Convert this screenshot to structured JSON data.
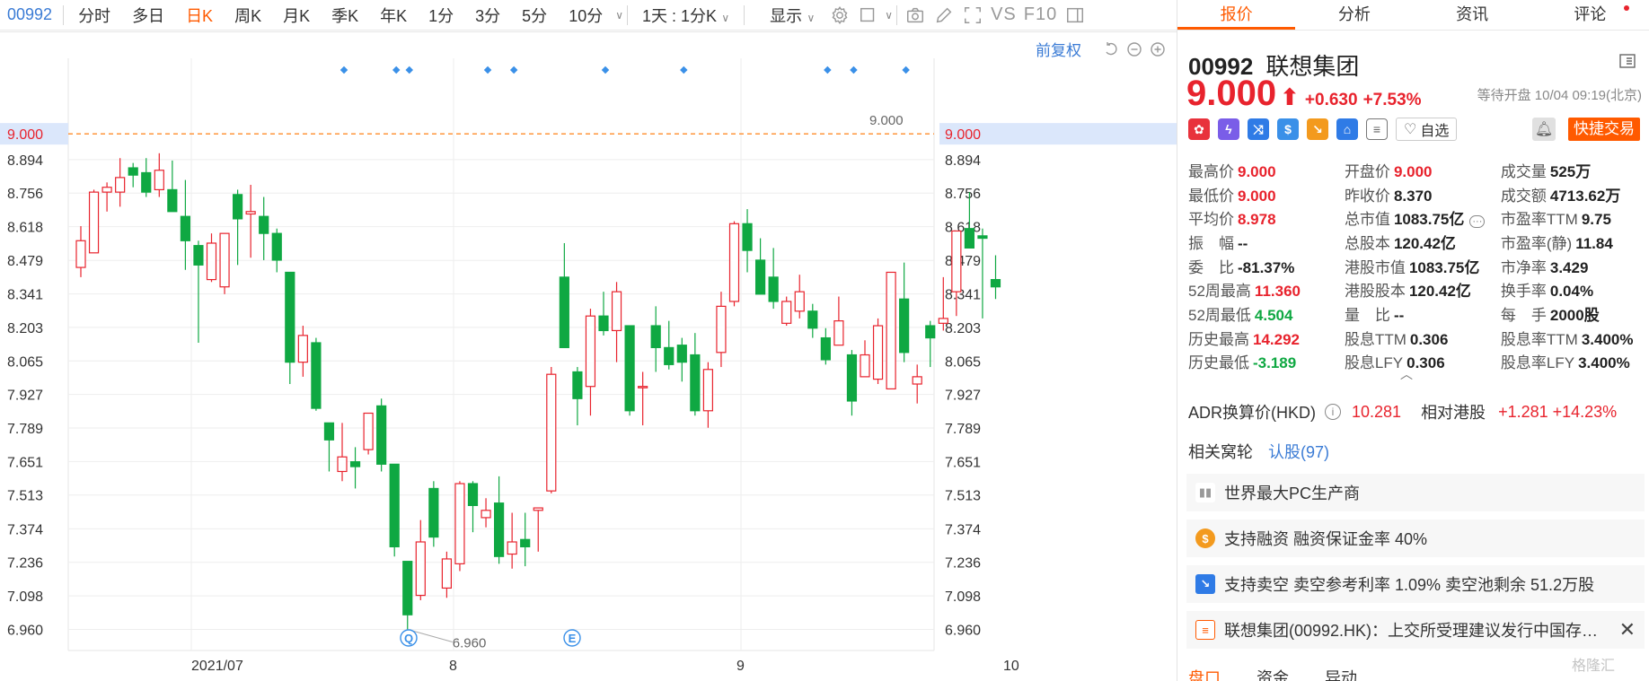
{
  "toolbar": {
    "code": "00992",
    "tabs": [
      "分时",
      "多日",
      "日K",
      "周K",
      "月K",
      "季K",
      "年K",
      "1分",
      "3分",
      "5分",
      "10分"
    ],
    "active_tab": "日K",
    "period_select": "1天 : 1分K",
    "display_label": "显示",
    "vs_label": "VS",
    "f10_label": "F10"
  },
  "chart": {
    "fq_label": "前复权",
    "current_price_label": "9.000",
    "min_label": "6.960",
    "event_markers": [
      "Q",
      "E"
    ],
    "colors": {
      "up": "#e8232d",
      "down": "#0fa842",
      "price_line": "#ff8c2a",
      "grid": "#eeeeee",
      "marker": "#3a90e8"
    }
  },
  "chart_data": {
    "type": "candlestick",
    "y_ticks": [
      "9.000",
      "8.894",
      "8.756",
      "8.618",
      "8.479",
      "8.341",
      "8.203",
      "8.065",
      "7.927",
      "7.789",
      "7.651",
      "7.513",
      "7.374",
      "7.236",
      "7.098",
      "6.960"
    ],
    "x_ticks": [
      "2021/07",
      "8",
      "9",
      "10"
    ],
    "ylim": [
      6.91,
      9.2
    ],
    "candles": [
      {
        "o": 8.45,
        "c": 8.56,
        "h": 8.62,
        "l": 8.41
      },
      {
        "o": 8.51,
        "c": 8.76,
        "h": 8.77,
        "l": 8.51
      },
      {
        "o": 8.76,
        "c": 8.78,
        "h": 8.8,
        "l": 8.68
      },
      {
        "o": 8.76,
        "c": 8.82,
        "h": 8.9,
        "l": 8.7
      },
      {
        "o": 8.86,
        "c": 8.83,
        "h": 8.88,
        "l": 8.78
      },
      {
        "o": 8.84,
        "c": 8.76,
        "h": 8.9,
        "l": 8.74
      },
      {
        "o": 8.77,
        "c": 8.85,
        "h": 8.92,
        "l": 8.74
      },
      {
        "o": 8.77,
        "c": 8.68,
        "h": 8.89,
        "l": 8.68
      },
      {
        "o": 8.66,
        "c": 8.56,
        "h": 8.81,
        "l": 8.44
      },
      {
        "o": 8.54,
        "c": 8.46,
        "h": 8.56,
        "l": 8.14
      },
      {
        "o": 8.4,
        "c": 8.55,
        "h": 8.59,
        "l": 8.39
      },
      {
        "o": 8.37,
        "c": 8.59,
        "h": 8.59,
        "l": 8.34
      },
      {
        "o": 8.75,
        "c": 8.65,
        "h": 8.77,
        "l": 8.46
      },
      {
        "o": 8.67,
        "c": 8.68,
        "h": 8.79,
        "l": 8.49
      },
      {
        "o": 8.66,
        "c": 8.59,
        "h": 8.74,
        "l": 8.48
      },
      {
        "o": 8.59,
        "c": 8.48,
        "h": 8.61,
        "l": 8.43
      },
      {
        "o": 8.43,
        "c": 8.06,
        "h": 8.43,
        "l": 7.97
      },
      {
        "o": 8.06,
        "c": 8.17,
        "h": 8.21,
        "l": 8.0
      },
      {
        "o": 8.14,
        "c": 7.87,
        "h": 8.16,
        "l": 7.86
      },
      {
        "o": 7.81,
        "c": 7.74,
        "h": 7.81,
        "l": 7.61
      },
      {
        "o": 7.61,
        "c": 7.67,
        "h": 7.81,
        "l": 7.57
      },
      {
        "o": 7.65,
        "c": 7.63,
        "h": 7.71,
        "l": 7.54
      },
      {
        "o": 7.7,
        "c": 7.85,
        "h": 7.85,
        "l": 7.68
      },
      {
        "o": 7.88,
        "c": 7.64,
        "h": 7.91,
        "l": 7.61
      },
      {
        "o": 7.64,
        "c": 7.3,
        "h": 7.64,
        "l": 7.26
      },
      {
        "o": 7.24,
        "c": 7.02,
        "h": 7.24,
        "l": 6.96
      },
      {
        "o": 7.1,
        "c": 7.32,
        "h": 7.41,
        "l": 7.08
      },
      {
        "o": 7.54,
        "c": 7.34,
        "h": 7.57,
        "l": 7.3
      },
      {
        "o": 7.13,
        "c": 7.25,
        "h": 7.28,
        "l": 7.09
      },
      {
        "o": 7.23,
        "c": 7.56,
        "h": 7.57,
        "l": 7.2
      },
      {
        "o": 7.56,
        "c": 7.47,
        "h": 7.57,
        "l": 7.36
      },
      {
        "o": 7.42,
        "c": 7.45,
        "h": 7.5,
        "l": 7.38
      },
      {
        "o": 7.48,
        "c": 7.26,
        "h": 7.59,
        "l": 7.23
      },
      {
        "o": 7.27,
        "c": 7.32,
        "h": 7.44,
        "l": 7.21
      },
      {
        "o": 7.33,
        "c": 7.3,
        "h": 7.44,
        "l": 7.22
      },
      {
        "o": 7.45,
        "c": 7.46,
        "h": 7.46,
        "l": 7.28
      },
      {
        "o": 7.53,
        "c": 8.01,
        "h": 8.04,
        "l": 7.52
      },
      {
        "o": 8.41,
        "c": 8.12,
        "h": 8.55,
        "l": 8.12
      },
      {
        "o": 8.02,
        "c": 7.91,
        "h": 8.04,
        "l": 7.8
      },
      {
        "o": 7.96,
        "c": 8.25,
        "h": 8.28,
        "l": 7.84
      },
      {
        "o": 8.25,
        "c": 8.19,
        "h": 8.35,
        "l": 8.17
      },
      {
        "o": 8.19,
        "c": 8.35,
        "h": 8.39,
        "l": 8.06
      },
      {
        "o": 8.21,
        "c": 7.86,
        "h": 8.21,
        "l": 7.84
      },
      {
        "o": 7.96,
        "c": 7.96,
        "h": 8.02,
        "l": 7.8
      },
      {
        "o": 8.21,
        "c": 8.12,
        "h": 8.29,
        "l": 8.02
      },
      {
        "o": 8.12,
        "c": 8.05,
        "h": 8.23,
        "l": 8.03
      },
      {
        "o": 8.13,
        "c": 8.06,
        "h": 8.16,
        "l": 7.98
      },
      {
        "o": 8.09,
        "c": 7.86,
        "h": 8.18,
        "l": 7.84
      },
      {
        "o": 7.86,
        "c": 8.03,
        "h": 8.06,
        "l": 7.79
      },
      {
        "o": 8.1,
        "c": 8.29,
        "h": 8.35,
        "l": 8.04
      },
      {
        "o": 8.31,
        "c": 8.63,
        "h": 8.64,
        "l": 8.29
      },
      {
        "o": 8.63,
        "c": 8.52,
        "h": 8.69,
        "l": 8.43
      },
      {
        "o": 8.48,
        "c": 8.34,
        "h": 8.57,
        "l": 8.34
      },
      {
        "o": 8.41,
        "c": 8.31,
        "h": 8.53,
        "l": 8.28
      },
      {
        "o": 8.22,
        "c": 8.31,
        "h": 8.33,
        "l": 8.21
      },
      {
        "o": 8.27,
        "c": 8.35,
        "h": 8.42,
        "l": 8.24
      },
      {
        "o": 8.27,
        "c": 8.2,
        "h": 8.3,
        "l": 8.16
      },
      {
        "o": 8.16,
        "c": 8.07,
        "h": 8.2,
        "l": 8.05
      },
      {
        "o": 8.13,
        "c": 8.23,
        "h": 8.33,
        "l": 8.13
      },
      {
        "o": 8.09,
        "c": 7.9,
        "h": 8.11,
        "l": 7.84
      },
      {
        "o": 8.0,
        "c": 8.09,
        "h": 8.15,
        "l": 8.0
      },
      {
        "o": 7.99,
        "c": 8.21,
        "h": 8.24,
        "l": 7.97
      },
      {
        "o": 7.95,
        "c": 8.43,
        "h": 8.43,
        "l": 7.95
      },
      {
        "o": 8.32,
        "c": 8.1,
        "h": 8.47,
        "l": 8.06
      },
      {
        "o": 7.97,
        "c": 8.0,
        "h": 8.05,
        "l": 7.89
      },
      {
        "o": 8.21,
        "c": 8.16,
        "h": 8.23,
        "l": 8.04
      },
      {
        "o": 8.22,
        "c": 8.24,
        "h": 8.41,
        "l": 8.19
      },
      {
        "o": 8.35,
        "c": 8.6,
        "h": 8.6,
        "l": 8.25
      },
      {
        "o": 8.61,
        "c": 8.53,
        "h": 8.76,
        "l": 8.53
      },
      {
        "o": 8.58,
        "c": 8.57,
        "h": 8.61,
        "l": 8.24
      },
      {
        "o": 8.4,
        "c": 8.37,
        "h": 8.5,
        "l": 8.32
      }
    ]
  },
  "panel": {
    "tabs": [
      "报价",
      "分析",
      "资讯",
      "评论"
    ],
    "active_tab": "报价",
    "code": "00992",
    "name": "联想集团",
    "price": "9.000",
    "change": "+0.630",
    "pct": "+7.53%",
    "status": "等待开盘 10/04 09:19(北京)",
    "watch_label": "自选",
    "trade_label": "快捷交易",
    "stats": [
      [
        {
          "l": "最高价",
          "v": "9.000",
          "c": "up"
        },
        {
          "l": "开盘价",
          "v": "9.000",
          "c": "up"
        },
        {
          "l": "成交量",
          "v": "525万",
          "c": ""
        }
      ],
      [
        {
          "l": "最低价",
          "v": "9.000",
          "c": "up"
        },
        {
          "l": "昨收价",
          "v": "8.370",
          "c": ""
        },
        {
          "l": "成交额",
          "v": "4713.62万",
          "c": ""
        }
      ],
      [
        {
          "l": "平均价",
          "v": "8.978",
          "c": "up"
        },
        {
          "l": "总市值",
          "v": "1083.75亿",
          "c": ""
        },
        {
          "l": "市盈率TTM",
          "v": "9.75",
          "c": ""
        }
      ],
      [
        {
          "l": "振　幅",
          "v": "--",
          "c": ""
        },
        {
          "l": "总股本",
          "v": "120.42亿",
          "c": ""
        },
        {
          "l": "市盈率(静)",
          "v": "11.84",
          "c": ""
        }
      ],
      [
        {
          "l": "委　比",
          "v": "-81.37%",
          "c": ""
        },
        {
          "l": "港股市值",
          "v": "1083.75亿",
          "c": ""
        },
        {
          "l": "市净率",
          "v": "3.429",
          "c": ""
        }
      ],
      [
        {
          "l": "52周最高",
          "v": "11.360",
          "c": "up"
        },
        {
          "l": "港股股本",
          "v": "120.42亿",
          "c": ""
        },
        {
          "l": "换手率",
          "v": "0.04%",
          "c": ""
        }
      ],
      [
        {
          "l": "52周最低",
          "v": "4.504",
          "c": "down"
        },
        {
          "l": "量　比",
          "v": "--",
          "c": ""
        },
        {
          "l": "每　手",
          "v": "2000股",
          "c": ""
        }
      ],
      [
        {
          "l": "历史最高",
          "v": "14.292",
          "c": "up"
        },
        {
          "l": "股息TTM",
          "v": "0.306",
          "c": ""
        },
        {
          "l": "股息率TTM",
          "v": "3.400%",
          "c": ""
        }
      ],
      [
        {
          "l": "历史最低",
          "v": "-3.189",
          "c": "down"
        },
        {
          "l": "股息LFY",
          "v": "0.306",
          "c": ""
        },
        {
          "l": "股息率LFY",
          "v": "3.400%",
          "c": ""
        }
      ]
    ],
    "adr_label": "ADR换算价(HKD)",
    "adr_value": "10.281",
    "adr_rel_label": "相对港股",
    "adr_rel_value": "+1.281 +14.23%",
    "warrant_label": "相关窝轮",
    "warrant_link": "认股(97)",
    "features": [
      {
        "icon": "book-icon",
        "text": "世界最大PC生产商"
      },
      {
        "icon": "dollar-icon",
        "text": "支持融资 融资保证金率 40%"
      },
      {
        "icon": "trend-down-icon",
        "text": "支持卖空 卖空参考利率 1.09% 卖空池剩余 51.2万股"
      },
      {
        "icon": "news-icon",
        "text": "联想集团(00992.HK)：上交所受理建议发行中国存…"
      }
    ],
    "bottom_tabs": [
      "盘口",
      "资金",
      "异动"
    ],
    "watermark": "格隆汇"
  }
}
